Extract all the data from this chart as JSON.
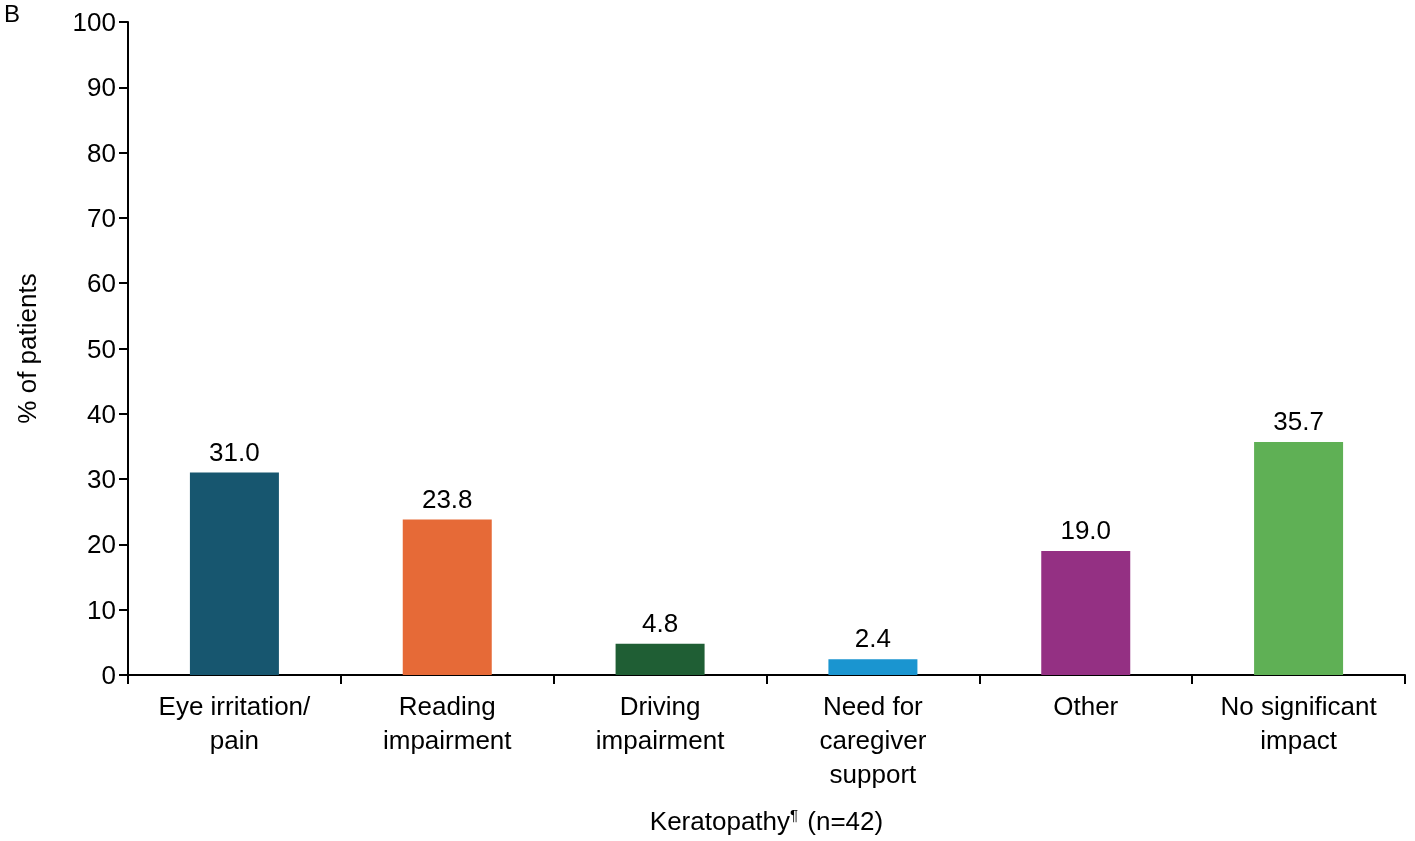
{
  "chart_data": {
    "type": "bar",
    "ylabel": "% of patients",
    "xlabel": "Keratopathy$^{¶}$ (n=42)",
    "annotations": [
      "B"
    ],
    "categories": [
      "Eye irritation/\npain",
      "Reading\nimpairment",
      "Driving\nimpairment",
      "Need for\ncaregiver\nsupport",
      "Other",
      "No significant\nimpact"
    ],
    "values": [
      31.0,
      23.8,
      4.8,
      2.4,
      19.0,
      35.7
    ],
    "colors": [
      "#17566f",
      "#e66a37",
      "#1f5e34",
      "#1a95d0",
      "#943083",
      "#5fb055"
    ],
    "value_labels": [
      "31.0",
      "23.8",
      "4.8",
      "2.4",
      "19.0",
      "35.7"
    ],
    "ylim": [
      0,
      100
    ],
    "yticks": [
      0,
      10,
      20,
      30,
      40,
      50,
      60,
      70,
      80,
      90,
      100
    ],
    "grid": false
  }
}
